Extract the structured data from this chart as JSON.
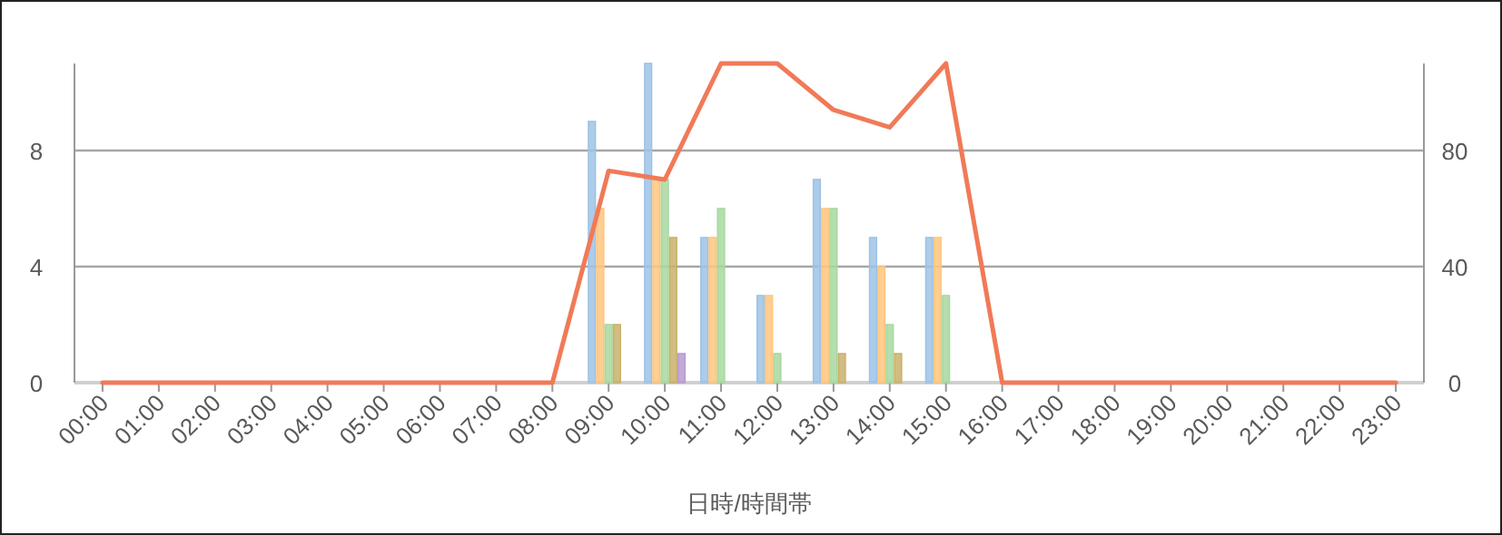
{
  "chart_data": {
    "type": "bar",
    "xlabel": "日時/時間帯",
    "categories": [
      "00:00",
      "01:00",
      "02:00",
      "03:00",
      "04:00",
      "05:00",
      "06:00",
      "07:00",
      "08:00",
      "09:00",
      "10:00",
      "11:00",
      "12:00",
      "13:00",
      "14:00",
      "15:00",
      "16:00",
      "17:00",
      "18:00",
      "19:00",
      "20:00",
      "21:00",
      "22:00",
      "23:00"
    ],
    "series": [
      {
        "color": "#9dc3e6",
        "values": [
          null,
          null,
          null,
          null,
          null,
          null,
          null,
          null,
          null,
          9,
          11,
          5,
          3,
          7,
          5,
          5,
          null,
          null,
          null,
          null,
          null,
          null,
          null,
          null
        ]
      },
      {
        "color": "#ffc67c",
        "values": [
          null,
          null,
          null,
          null,
          null,
          null,
          null,
          null,
          null,
          6,
          7,
          5,
          3,
          6,
          4,
          5,
          null,
          null,
          null,
          null,
          null,
          null,
          null,
          null
        ]
      },
      {
        "color": "#a8d8a0",
        "values": [
          null,
          null,
          null,
          null,
          null,
          null,
          null,
          null,
          null,
          2,
          7,
          6,
          1,
          6,
          2,
          3,
          null,
          null,
          null,
          null,
          null,
          null,
          null,
          null
        ]
      },
      {
        "color": "#c9b26c",
        "values": [
          null,
          null,
          null,
          null,
          null,
          null,
          null,
          null,
          null,
          2,
          5,
          null,
          null,
          1,
          1,
          null,
          null,
          null,
          null,
          null,
          null,
          null,
          null,
          null
        ]
      },
      {
        "color": "#b99bd0",
        "values": [
          null,
          null,
          null,
          null,
          null,
          null,
          null,
          null,
          null,
          null,
          1,
          null,
          null,
          null,
          null,
          null,
          null,
          null,
          null,
          null,
          null,
          null,
          null,
          null
        ]
      },
      {
        "type": "line",
        "axis": "y2",
        "color": "#f07a58",
        "values": [
          0,
          0,
          0,
          0,
          0,
          0,
          0,
          0,
          0,
          73,
          70,
          110,
          110,
          94,
          88,
          110,
          0,
          0,
          0,
          0,
          0,
          0,
          0,
          0
        ]
      }
    ],
    "ylim": [
      0,
      11
    ],
    "yticks": [
      0,
      4,
      8
    ],
    "y2lim": [
      0,
      110
    ],
    "y2ticks": [
      0,
      40,
      80
    ],
    "grid": "y"
  }
}
